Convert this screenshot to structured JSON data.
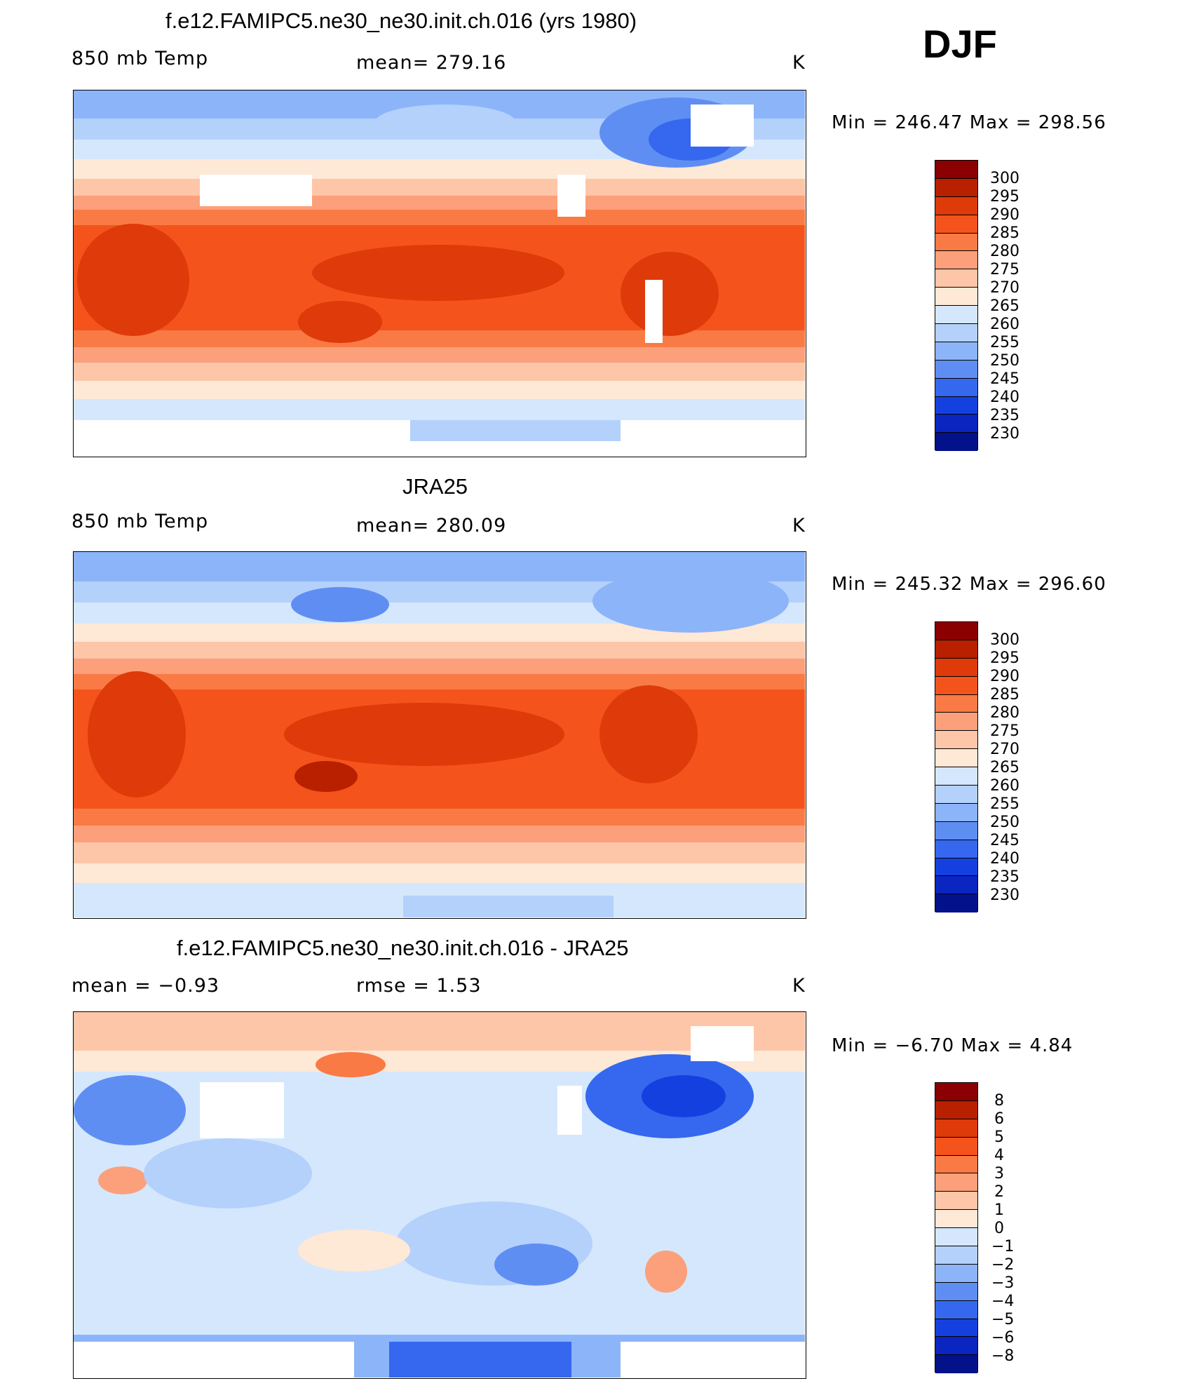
{
  "season": "DJF",
  "panels": [
    {
      "title": "f.e12.FAMIPC5.ne30_ne30.init.ch.016 (yrs 1980)",
      "left_label": "850 mb Temp",
      "center_label": "mean= 279.16",
      "units": "K",
      "minmax": "Min  =  246.47  Max  =  298.56",
      "colorbar_labels": [
        "300",
        "295",
        "290",
        "285",
        "280",
        "275",
        "270",
        "265",
        "260",
        "255",
        "250",
        "245",
        "240",
        "235",
        "230"
      ],
      "colorbar_colors": [
        "#8b0000",
        "#b82000",
        "#de3a0a",
        "#f4541c",
        "#f97a45",
        "#fba07a",
        "#fdc6a8",
        "#fee8d6",
        "#d5e7fc",
        "#b4d1fc",
        "#8cb4f9",
        "#5f8ef3",
        "#3568ee",
        "#1540e0",
        "#0a25c0",
        "#03128a"
      ],
      "mean": 279.16,
      "min": 246.47,
      "max": 298.56
    },
    {
      "title": "JRA25",
      "left_label": "850 mb Temp",
      "center_label": "mean= 280.09",
      "units": "K",
      "minmax": "Min  =  245.32  Max  =  296.60",
      "colorbar_labels": [
        "300",
        "295",
        "290",
        "285",
        "280",
        "275",
        "270",
        "265",
        "260",
        "255",
        "250",
        "245",
        "240",
        "235",
        "230"
      ],
      "colorbar_colors": [
        "#8b0000",
        "#b82000",
        "#de3a0a",
        "#f4541c",
        "#f97a45",
        "#fba07a",
        "#fdc6a8",
        "#fee8d6",
        "#d5e7fc",
        "#b4d1fc",
        "#8cb4f9",
        "#5f8ef3",
        "#3568ee",
        "#1540e0",
        "#0a25c0",
        "#03128a"
      ],
      "mean": 280.09,
      "min": 245.32,
      "max": 296.6
    },
    {
      "title": "f.e12.FAMIPC5.ne30_ne30.init.ch.016 - JRA25",
      "left_label": "mean  =    −0.93",
      "center_label": "rmse  =     1.53",
      "units": "K",
      "minmax": "Min  =   −6.70  Max  =     4.84",
      "colorbar_labels": [
        "8",
        "6",
        "5",
        "4",
        "3",
        "2",
        "1",
        "0",
        "−1",
        "−2",
        "−3",
        "−4",
        "−5",
        "−6",
        "−8"
      ],
      "colorbar_colors": [
        "#8b0000",
        "#b82000",
        "#de3a0a",
        "#f4541c",
        "#f97a45",
        "#fba07a",
        "#fdc6a8",
        "#fee8d6",
        "#d5e7fc",
        "#b4d1fc",
        "#8cb4f9",
        "#5f8ef3",
        "#3568ee",
        "#1540e0",
        "#0a25c0",
        "#03128a"
      ],
      "mean": -0.93,
      "rmse": 1.53,
      "min": -6.7,
      "max": 4.84
    }
  ]
}
